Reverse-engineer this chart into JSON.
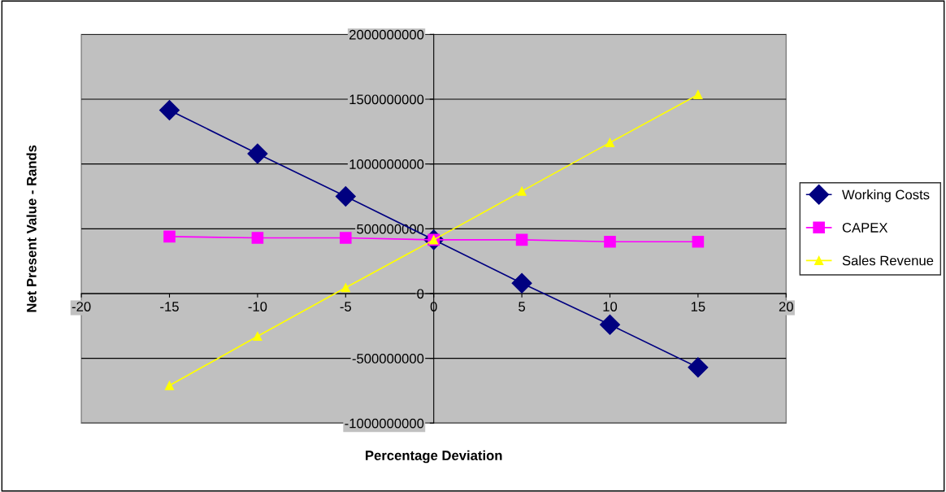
{
  "chart_data": {
    "type": "line",
    "xlabel": "Percentage Deviation",
    "ylabel": "Net Present Value - Rands",
    "x": [
      -15,
      -10,
      -5,
      0,
      5,
      10,
      15
    ],
    "series": [
      {
        "name": "Working Costs",
        "color": "#000080",
        "marker": "diamond",
        "values": [
          1415000000,
          1080000000,
          750000000,
          415000000,
          80000000,
          -240000000,
          -570000000
        ]
      },
      {
        "name": "CAPEX",
        "color": "#ff00ff",
        "marker": "square",
        "values": [
          440000000,
          430000000,
          430000000,
          415000000,
          415000000,
          400000000,
          400000000
        ]
      },
      {
        "name": "Sales Revenue",
        "color": "#ffff00",
        "marker": "triangle",
        "values": [
          -710000000,
          -330000000,
          45000000,
          415000000,
          790000000,
          1165000000,
          1535000000
        ]
      }
    ],
    "xlim": [
      -20,
      20
    ],
    "xticks": [
      -20,
      -15,
      -10,
      -5,
      0,
      5,
      10,
      15,
      20
    ],
    "ylim": [
      -1000000000,
      2000000000
    ],
    "yticks": [
      -1000000000,
      -500000000,
      0,
      500000000,
      1000000000,
      1500000000,
      2000000000
    ],
    "grid": "y",
    "legend": "right",
    "line_style": "solid"
  }
}
